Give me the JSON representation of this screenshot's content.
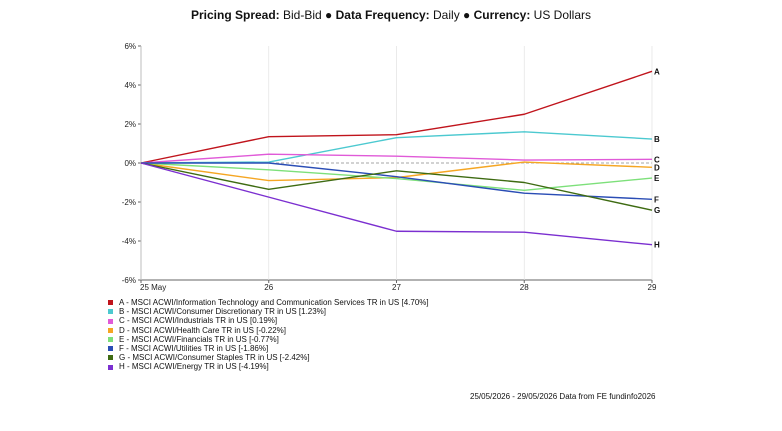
{
  "header": {
    "spread_label": "Pricing Spread:",
    "spread_value": "Bid-Bid",
    "frequency_label": "Data Frequency:",
    "frequency_value": "Daily",
    "currency_label": "Currency:",
    "currency_value": "US Dollars",
    "separator": "●"
  },
  "chart_data": {
    "type": "line",
    "title": "",
    "xlabel": "",
    "ylabel": "",
    "x": [
      "25 May",
      "26",
      "27",
      "28",
      "29"
    ],
    "ylim": [
      -6,
      6
    ],
    "yticks": [
      6,
      4,
      2,
      0,
      -2,
      -4,
      -6
    ],
    "ytick_labels": [
      "6%",
      "4%",
      "2%",
      "0%",
      "-2%",
      "-4%",
      "-6%"
    ],
    "grid": false,
    "zero_line": "dashed",
    "legend_position": "bottom-left",
    "series": [
      {
        "name": "A - MSCI ACWI/Information Technology and Communication Services TR in US [4.70%]",
        "end_label": "A",
        "color": "#c0141c",
        "values": [
          0,
          1.35,
          1.45,
          2.5,
          4.7
        ]
      },
      {
        "name": "B - MSCI ACWI/Consumer Discretionary TR in US [1.23%]",
        "end_label": "B",
        "color": "#4cc9d0",
        "values": [
          0,
          0.05,
          1.3,
          1.6,
          1.23
        ]
      },
      {
        "name": "C - MSCI ACWI/Industrials TR in US [0.19%]",
        "end_label": "C",
        "color": "#e05ad8",
        "values": [
          0,
          0.45,
          0.35,
          0.15,
          0.19
        ]
      },
      {
        "name": "D - MSCI ACWI/Health Care TR in US [-0.22%]",
        "end_label": "D",
        "color": "#f5a623",
        "values": [
          0,
          -0.9,
          -0.75,
          0.05,
          -0.22
        ]
      },
      {
        "name": "E - MSCI ACWI/Financials TR in US [-0.77%]",
        "end_label": "E",
        "color": "#7de07a",
        "values": [
          0,
          -0.35,
          -0.8,
          -1.4,
          -0.77
        ]
      },
      {
        "name": "F - MSCI ACWI/Utilities TR in US [-1.86%]",
        "end_label": "F",
        "color": "#2a4db5",
        "values": [
          0,
          0.0,
          -0.7,
          -1.55,
          -1.86
        ]
      },
      {
        "name": "G - MSCI ACWI/Consumer Staples TR in US [-2.42%]",
        "end_label": "G",
        "color": "#3e6b12",
        "values": [
          0,
          -1.35,
          -0.4,
          -1.0,
          -2.42
        ]
      },
      {
        "name": "H - MSCI ACWI/Energy TR in US [-4.19%]",
        "end_label": "H",
        "color": "#7b2fd0",
        "values": [
          0,
          -1.75,
          -3.5,
          -3.55,
          -4.19
        ]
      }
    ]
  },
  "footer": {
    "text": "25/05/2026 - 29/05/2026 Data from FE fundinfo2026"
  }
}
